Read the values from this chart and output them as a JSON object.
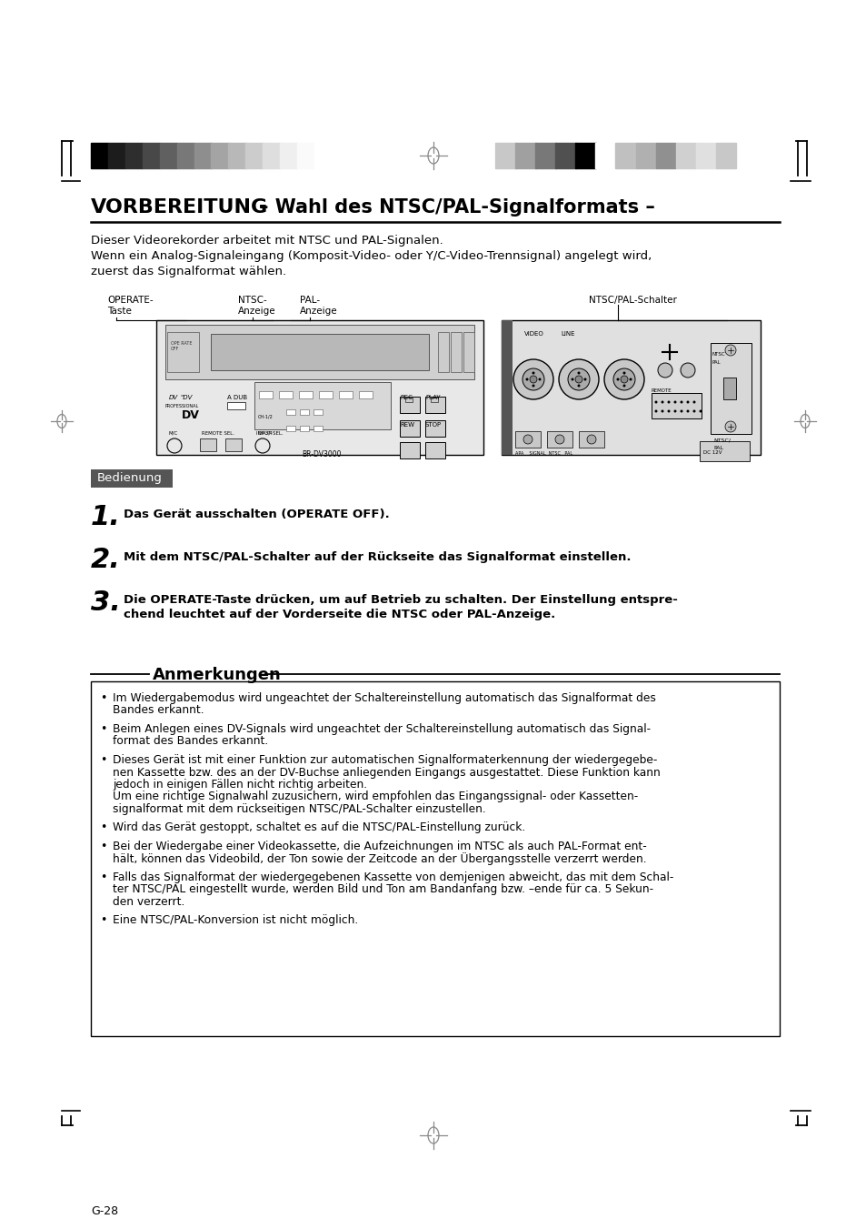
{
  "page_bg": "#ffffff",
  "title_bold": "VORBEREITUNG",
  "title_normal": "– Wahl des NTSC/PAL-Signalformats –",
  "intro_lines": [
    "Dieser Videorekorder arbeitet mit NTSC und PAL-Signalen.",
    "Wenn ein Analog-Signaleingang (Komposit-Video- oder Y/C-Video-Trennsignal) angelegt wird,",
    "zuerst das Signalformat wählen."
  ],
  "label_operate": "OPERATE-\nTaste",
  "label_ntsc": "NTSC-\nAnzeige",
  "label_pal": "PAL-\nAnzeige",
  "label_ntscpal": "NTSC/PAL-Schalter",
  "bedienung_label": "Bedienung",
  "bedienung_bg": "#555555",
  "bedienung_fg": "#ffffff",
  "steps": [
    {
      "number": "1.",
      "text": "Das Gerät ausschalten (OPERATE OFF).",
      "bold": true
    },
    {
      "number": "2.",
      "text": "Mit dem NTSC/PAL-Schalter auf der Rückseite das Signalformat einstellen.",
      "bold": true
    },
    {
      "number": "3.",
      "text": "Die OPERATE-Taste drücken, um auf Betrieb zu schalten. Der Einstellung entspre-\nchend leuchtet auf der Vorderseite die NTSC oder PAL-Anzeige.",
      "bold": true
    }
  ],
  "notes_title": "Anmerkungen",
  "notes": [
    "Im Wiedergabemodus wird ungeachtet der Schaltereinstellung automatisch das Signalformat des\nBandes erkannt.",
    "Beim Anlegen eines DV-Signals wird ungeachtet der Schaltereinstellung automatisch das Signal-\nformat des Bandes erkannt.",
    "Dieses Gerät ist mit einer Funktion zur automatischen Signalformaterkennung der wiedergegebe-\nnen Kassette bzw. des an der DV-Buchse anliegenden Eingangs ausgestattet. Diese Funktion kann\njedoch in einigen Fällen nicht richtig arbeiten.\nUm eine richtige Signalwahl zuzusichern, wird empfohlen das Eingangssignal- oder Kassetten-\nsignalformat mit dem rückseitigen NTSC/PAL-Schalter einzustellen.",
    "Wird das Gerät gestoppt, schaltet es auf die NTSC/PAL-Einstellung zurück.",
    "Bei der Wiedergabe einer Videokassette, die Aufzeichnungen im NTSC als auch PAL-Format ent-\nhält, können das Videobild, der Ton sowie der Zeitcode an der Übergangsstelle verzerrt werden.",
    "Falls das Signalformat der wiedergegebenen Kassette von demjenigen abweicht, das mit dem Schal-\nter NTSC/PAL eingestellt wurde, werden Bild und Ton am Bandanfang bzw. –ende für ca. 5 Sekun-\nden verzerrt.",
    "Eine NTSC/PAL-Konversion ist nicht möglich."
  ],
  "footer_text": "G-28",
  "bar_left": [
    "#000000",
    "#1c1c1c",
    "#2e2e2e",
    "#484848",
    "#606060",
    "#787878",
    "#8e8e8e",
    "#a4a4a4",
    "#b8b8b8",
    "#cccccc",
    "#dedede",
    "#efefef",
    "#fafafa",
    "#ffffff"
  ],
  "bar_right": [
    "#c8c8c8",
    "#a0a0a0",
    "#787878",
    "#505050",
    "#000000",
    "#ffffff",
    "#c0c0c0",
    "#b0b0b0",
    "#909090",
    "#d0d0d0",
    "#e0e0e0",
    "#c8c8c8"
  ]
}
